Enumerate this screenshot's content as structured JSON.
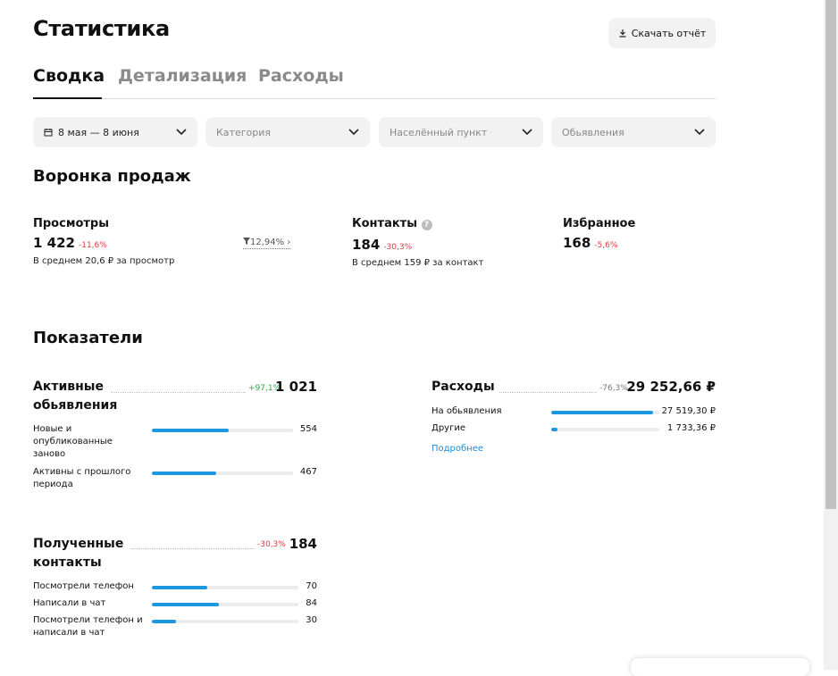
{
  "header": {
    "title": "Статистика",
    "download_button": "Скачать отчёт"
  },
  "tabs": [
    "Сводка",
    "Детализация",
    "Расходы"
  ],
  "filters": [
    "8 мая — 8 июня",
    "Категория",
    "Населённый пункт",
    "Обьявления"
  ],
  "funnel": {
    "title": "Воронка продаж",
    "metrics": [
      {
        "name": "Просмотры",
        "value": "1 422",
        "change": "-11,6%",
        "note": "В среднем 20,6 ₽ за просмотр"
      },
      {
        "name": "Контакты",
        "value": "184",
        "change": "-30,3%",
        "note": "В среднем 159 ₽ за контакт"
      },
      {
        "name": "Избранное",
        "value": "168",
        "change": "-5,6%"
      }
    ],
    "conversion": "12,94%"
  },
  "indicators": {
    "title": "Показатели",
    "blocks": [
      {
        "title": "Активные обьявления",
        "change": "+97,1%",
        "total": {
          "value": 1021,
          "label": "1 021"
        },
        "rows": [
          {
            "label": "Новые и опубликованные заново",
            "value": 554
          },
          {
            "label": "Активны с прошлого периода",
            "value": 467
          }
        ]
      },
      {
        "title": "Полученные контакты",
        "change": "-30,3%",
        "total": {
          "value": 184,
          "label": "184"
        },
        "rows": [
          {
            "label": "Посмотрели телефон",
            "value": 70
          },
          {
            "label": "Написали в чат",
            "value": 84
          },
          {
            "label": "Посмотрели телефон и написали в чат",
            "value": 30
          }
        ]
      },
      {
        "title": "Расходы",
        "change": "-76,3%",
        "total": {
          "value": 29252.66,
          "label": "29 252,66 ₽"
        },
        "rows": [
          {
            "label": "На обьявления",
            "value": 27519.3,
            "value_label": "27 519,30 ₽"
          },
          {
            "label": "Другие",
            "value": 1733.36,
            "value_label": "1 733,36 ₽"
          }
        ],
        "link": "Подробнее"
      }
    ]
  }
}
